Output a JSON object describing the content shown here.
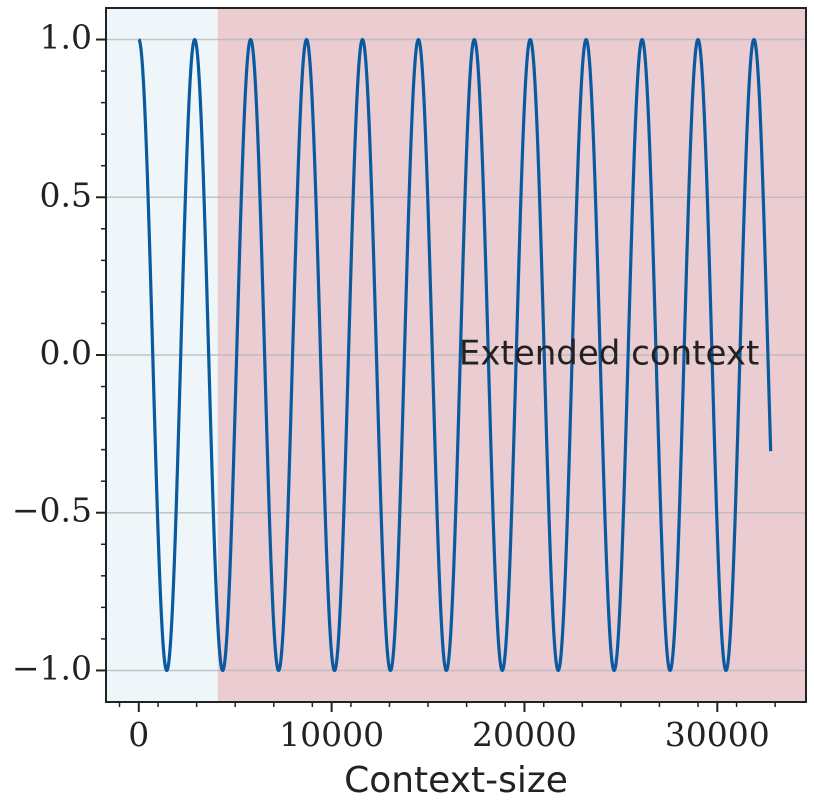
{
  "chart_data": {
    "type": "line",
    "xlabel": "Context-size",
    "ylabel": "",
    "xlim": [
      -1700,
      34600
    ],
    "ylim": [
      -1.1,
      1.1
    ],
    "x_ticks": [
      0,
      10000,
      20000,
      30000
    ],
    "x_tick_labels": [
      "0",
      "10000",
      "20000",
      "30000"
    ],
    "y_ticks": [
      1.0,
      0.5,
      0.0,
      -0.5,
      -1.0
    ],
    "y_tick_labels": [
      "1.0",
      "0.5",
      "0.0",
      "−0.5",
      "−1.0"
    ],
    "grid": "horizontal",
    "series": [
      {
        "function": "cos",
        "period": 2900,
        "amplitude": 1.0,
        "x_start": 0,
        "x_end": 32768,
        "color": "#0a5aa0"
      }
    ],
    "regions": [
      {
        "x_start": -1700,
        "x_end": 4096,
        "color": "#eef6fa"
      },
      {
        "x_start": 4096,
        "x_end": 34600,
        "color": "#ebccd1",
        "label": "Extended context"
      }
    ],
    "annotations": [
      {
        "text": "Extended context",
        "x": 16600,
        "y": 0.0
      }
    ]
  }
}
